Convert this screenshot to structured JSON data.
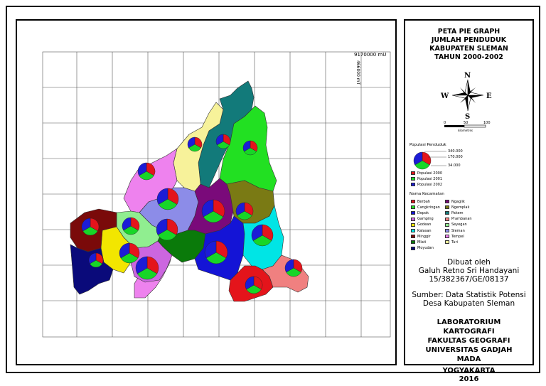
{
  "title": {
    "lines": [
      "PETA PIE GRAPH",
      "JUMLAH PENDUDUK",
      "KABUPATEN SLEMAN",
      "TAHUN 2000-2002"
    ]
  },
  "compass": {
    "north": "N",
    "south": "S",
    "east": "E",
    "west": "W"
  },
  "scalebar": {
    "ticks": [
      "0",
      "50",
      "100"
    ],
    "unit": "kilometres"
  },
  "grid_labels": {
    "top_right": "9170000 mU",
    "rotated": "466000 mT"
  },
  "pie_legend": {
    "heading": "Populasi Penduduk",
    "values": [
      "340.000",
      "170.000",
      "34.000"
    ],
    "series": [
      {
        "label": "Populasi 2000",
        "color": "#e4141b"
      },
      {
        "label": "Populasi 2001",
        "color": "#17d627"
      },
      {
        "label": "Populasi 2002",
        "color": "#1c1cd6"
      }
    ]
  },
  "kecamatan_legend": {
    "heading": "Nama Kecamatan",
    "left": [
      {
        "label": "Berbah",
        "color": "#e4141b"
      },
      {
        "label": "Cangkringan",
        "color": "#22e022"
      },
      {
        "label": "Depok",
        "color": "#1414d6"
      },
      {
        "label": "Gamping",
        "color": "#cc66e0"
      },
      {
        "label": "Godean",
        "color": "#f2e600"
      },
      {
        "label": "Kalasan",
        "color": "#00e5e5"
      },
      {
        "label": "Minggir",
        "color": "#7a0a0a"
      },
      {
        "label": "Mlati",
        "color": "#0a7a0a"
      },
      {
        "label": "Moyudan",
        "color": "#0a0a7a"
      }
    ],
    "right": [
      {
        "label": "Ngaglik",
        "color": "#7a0a7a"
      },
      {
        "label": "Ngemplak",
        "color": "#7a7a14"
      },
      {
        "label": "Pakem",
        "color": "#127a7a"
      },
      {
        "label": "Prambanan",
        "color": "#f08080"
      },
      {
        "label": "Seyegan",
        "color": "#90ee90"
      },
      {
        "label": "Sleman",
        "color": "#8c8ce8"
      },
      {
        "label": "Tempel",
        "color": "#ee82ee"
      },
      {
        "label": "Turi",
        "color": "#f7f29a"
      }
    ]
  },
  "author": {
    "lines": [
      "Dibuat oleh",
      "Galuh Retno Sri Handayani",
      "15/382367/GE/08137"
    ]
  },
  "source": {
    "lines": [
      "Sumber: Data Statistik Potensi",
      "Desa Kabupaten Sleman"
    ]
  },
  "institution": {
    "lines": [
      "LABORATORIUM",
      "KARTOGRAFI",
      "FAKULTAS GEOGRAFI",
      "UNIVERSITAS GADJAH",
      "MADA"
    ]
  },
  "footer": {
    "lines": [
      "YOGYAKARTA",
      "2016"
    ]
  }
}
